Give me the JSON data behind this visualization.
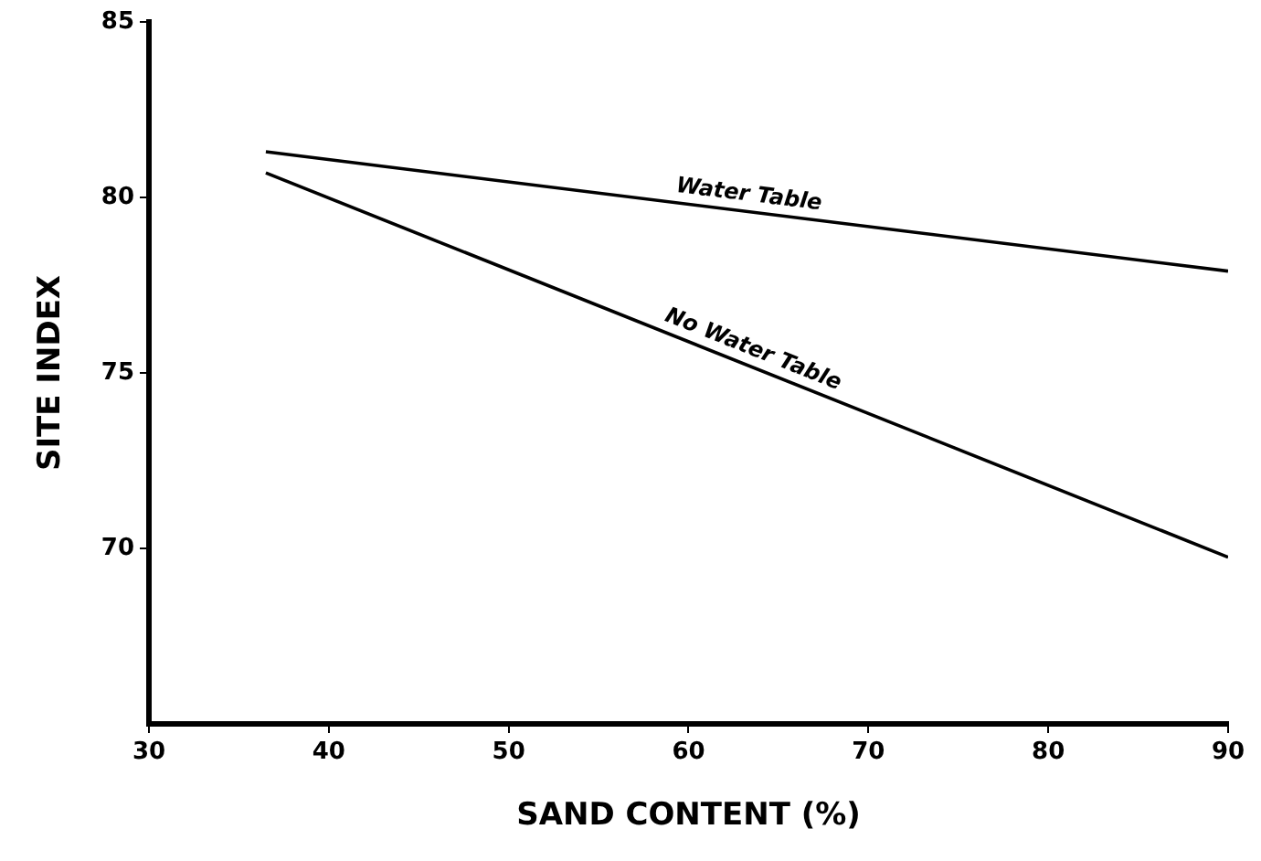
{
  "chart_data": {
    "type": "line",
    "xlabel": "SAND CONTENT (%)",
    "ylabel": "SITE INDEX",
    "xlim": [
      30,
      90
    ],
    "xticks": [
      30,
      40,
      50,
      60,
      70,
      80,
      90
    ],
    "ylim": [
      65,
      85
    ],
    "yticks": [
      70,
      75,
      80,
      85
    ],
    "grid": false,
    "legend": false,
    "marker": "none",
    "line_style": "solid",
    "x": [
      36.5,
      90
    ],
    "series": [
      {
        "name": "Water Table",
        "color": "#000000",
        "values": [
          81.3,
          77.9
        ]
      },
      {
        "name": "No Water Table",
        "color": "#000000",
        "values": [
          80.7,
          69.75
        ]
      }
    ]
  }
}
